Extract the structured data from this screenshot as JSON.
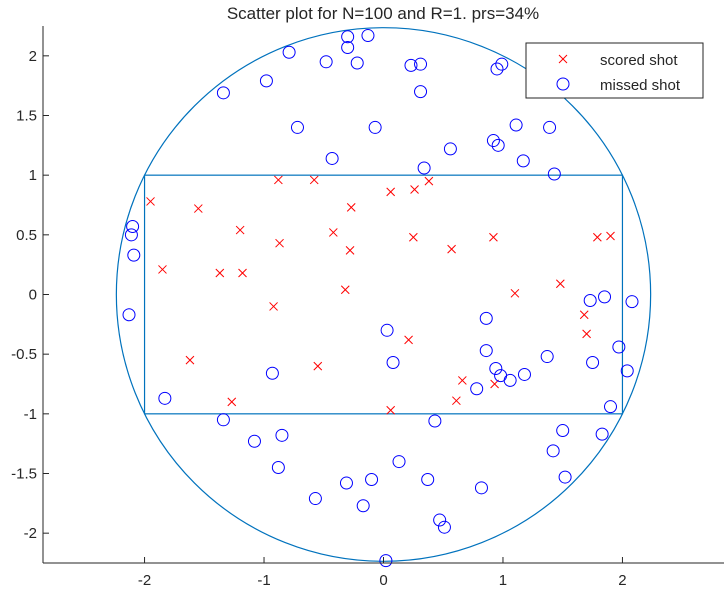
{
  "chart_data": {
    "type": "scatter",
    "title": "Scatter plot for N=100 and R=1. prs=34%",
    "xlabel": "",
    "ylabel": "",
    "xlim": [
      -2.85,
      2.85
    ],
    "ylim": [
      -2.25,
      2.25
    ],
    "xticks": [
      -2,
      -1,
      0,
      1,
      2
    ],
    "yticks": [
      -2,
      -1.5,
      -1,
      -0.5,
      0,
      0.5,
      1,
      1.5,
      2
    ],
    "ytick_labels": [
      "-2",
      "-1.5",
      "-1",
      "-0.5",
      "0",
      "0.5",
      "1",
      "1.5",
      "2"
    ],
    "grid": false,
    "legend_position": "top-right",
    "shapes": {
      "circle": {
        "cx": 0,
        "cy": 0,
        "r": 2.236
      },
      "rectangle": {
        "x": [
          -2,
          2
        ],
        "y": [
          -1,
          1
        ]
      },
      "color": "#0072BD"
    },
    "series": [
      {
        "name": "scored shot",
        "marker": "x",
        "color": "#FF0000",
        "points": [
          [
            -1.95,
            0.78
          ],
          [
            -1.55,
            0.72
          ],
          [
            -1.85,
            0.21
          ],
          [
            -1.62,
            -0.55
          ],
          [
            -1.27,
            -0.9
          ],
          [
            -1.37,
            0.18
          ],
          [
            -1.18,
            0.18
          ],
          [
            -1.2,
            0.54
          ],
          [
            -0.88,
            0.96
          ],
          [
            -0.87,
            0.43
          ],
          [
            -0.92,
            -0.1
          ],
          [
            -0.58,
            0.96
          ],
          [
            -0.55,
            -0.6
          ],
          [
            -0.42,
            0.52
          ],
          [
            -0.27,
            0.73
          ],
          [
            -0.28,
            0.37
          ],
          [
            -0.32,
            0.04
          ],
          [
            0.06,
            0.86
          ],
          [
            0.26,
            0.88
          ],
          [
            0.38,
            0.95
          ],
          [
            0.25,
            0.48
          ],
          [
            0.57,
            0.38
          ],
          [
            0.21,
            -0.38
          ],
          [
            0.06,
            -0.97
          ],
          [
            0.61,
            -0.89
          ],
          [
            0.66,
            -0.72
          ],
          [
            0.93,
            -0.75
          ],
          [
            0.92,
            0.48
          ],
          [
            1.1,
            0.01
          ],
          [
            1.48,
            0.09
          ],
          [
            1.68,
            -0.17
          ],
          [
            1.7,
            -0.33
          ],
          [
            1.79,
            0.48
          ],
          [
            1.9,
            0.49
          ]
        ]
      },
      {
        "name": "missed shot",
        "marker": "o",
        "color": "#0000FF",
        "points": [
          [
            -0.79,
            2.03
          ],
          [
            -0.48,
            1.95
          ],
          [
            -0.3,
            2.07
          ],
          [
            -0.3,
            2.16
          ],
          [
            -0.22,
            1.94
          ],
          [
            -0.13,
            2.17
          ],
          [
            -0.07,
            1.4
          ],
          [
            0.23,
            1.92
          ],
          [
            0.31,
            1.93
          ],
          [
            0.31,
            1.7
          ],
          [
            -1.34,
            1.69
          ],
          [
            -0.98,
            1.79
          ],
          [
            -0.72,
            1.4
          ],
          [
            -0.43,
            1.14
          ],
          [
            0.34,
            1.06
          ],
          [
            0.56,
            1.22
          ],
          [
            0.95,
            1.89
          ],
          [
            0.99,
            1.93
          ],
          [
            1.11,
            1.42
          ],
          [
            0.92,
            1.29
          ],
          [
            0.96,
            1.25
          ],
          [
            1.17,
            1.12
          ],
          [
            1.39,
            1.4
          ],
          [
            1.43,
            1.01
          ],
          [
            -2.1,
            0.57
          ],
          [
            -2.11,
            0.5
          ],
          [
            -2.09,
            0.33
          ],
          [
            -2.13,
            -0.17
          ],
          [
            -1.83,
            -0.87
          ],
          [
            -1.34,
            -1.05
          ],
          [
            -1.08,
            -1.23
          ],
          [
            -0.93,
            -0.66
          ],
          [
            -0.85,
            -1.18
          ],
          [
            -0.88,
            -1.45
          ],
          [
            -0.57,
            -1.71
          ],
          [
            -0.31,
            -1.58
          ],
          [
            -0.17,
            -1.77
          ],
          [
            -0.1,
            -1.55
          ],
          [
            0.13,
            -1.4
          ],
          [
            0.03,
            -0.3
          ],
          [
            0.08,
            -0.57
          ],
          [
            0.37,
            -1.55
          ],
          [
            0.43,
            -1.06
          ],
          [
            0.47,
            -1.89
          ],
          [
            0.51,
            -1.95
          ],
          [
            0.02,
            -2.23
          ],
          [
            0.82,
            -1.62
          ],
          [
            0.78,
            -0.79
          ],
          [
            0.86,
            -0.2
          ],
          [
            0.86,
            -0.47
          ],
          [
            0.94,
            -0.62
          ],
          [
            0.98,
            -0.68
          ],
          [
            1.06,
            -0.72
          ],
          [
            1.18,
            -0.67
          ],
          [
            1.37,
            -0.52
          ],
          [
            1.42,
            -1.31
          ],
          [
            1.5,
            -1.14
          ],
          [
            1.52,
            -1.53
          ],
          [
            1.73,
            -0.05
          ],
          [
            1.75,
            -0.57
          ],
          [
            1.85,
            -0.02
          ],
          [
            1.97,
            -0.44
          ],
          [
            1.9,
            -0.94
          ],
          [
            1.83,
            -1.17
          ],
          [
            2.04,
            -0.64
          ],
          [
            2.08,
            -0.06
          ]
        ]
      }
    ]
  }
}
